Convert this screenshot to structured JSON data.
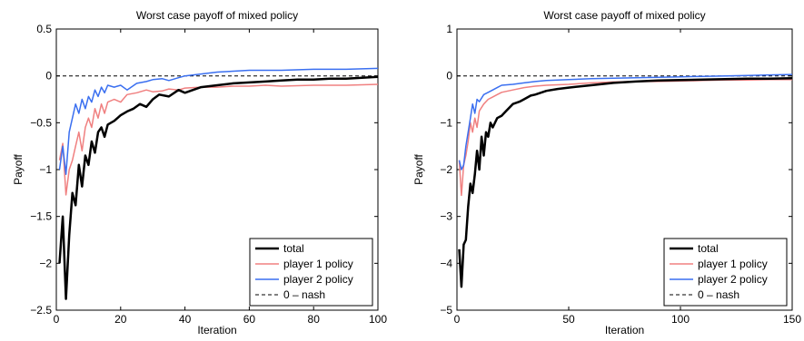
{
  "chart_data": [
    {
      "type": "line",
      "title": "Worst case payoff of mixed policy",
      "xlabel": "Iteration",
      "ylabel": "Payoff",
      "xlim": [
        0,
        100
      ],
      "ylim": [
        -2.5,
        0.5
      ],
      "xticks": [
        0,
        20,
        40,
        60,
        80,
        100
      ],
      "xtick_labels": [
        "0",
        "20",
        "40",
        "60",
        "80",
        "100"
      ],
      "yticks": [
        -2.5,
        -2,
        -1.5,
        -1,
        -0.5,
        0,
        0.5
      ],
      "ytick_labels": [
        "−2.5",
        "−2",
        "−1.5",
        "−1",
        "−0.5",
        "0",
        "0.5"
      ],
      "legend_position": "bottom-right",
      "series": [
        {
          "name": "total",
          "color": "#000000",
          "style": "solid-thick",
          "x": [
            1,
            2,
            3,
            4,
            5,
            6,
            7,
            8,
            9,
            10,
            11,
            12,
            13,
            14,
            15,
            16,
            17,
            18,
            19,
            20,
            22,
            24,
            26,
            28,
            30,
            32,
            35,
            38,
            40,
            45,
            50,
            55,
            60,
            65,
            70,
            75,
            80,
            85,
            90,
            95,
            100
          ],
          "y": [
            -2.0,
            -1.5,
            -2.38,
            -1.7,
            -1.25,
            -1.38,
            -0.95,
            -1.18,
            -0.85,
            -0.95,
            -0.7,
            -0.82,
            -0.6,
            -0.55,
            -0.65,
            -0.52,
            -0.5,
            -0.48,
            -0.45,
            -0.42,
            -0.38,
            -0.35,
            -0.3,
            -0.33,
            -0.25,
            -0.2,
            -0.22,
            -0.15,
            -0.18,
            -0.12,
            -0.1,
            -0.08,
            -0.07,
            -0.06,
            -0.05,
            -0.04,
            -0.04,
            -0.03,
            -0.03,
            -0.02,
            -0.01
          ]
        },
        {
          "name": "player 1 policy",
          "color": "#f08080",
          "style": "solid",
          "x": [
            1,
            2,
            3,
            4,
            5,
            6,
            7,
            8,
            9,
            10,
            11,
            12,
            13,
            14,
            15,
            16,
            18,
            20,
            22,
            25,
            28,
            30,
            33,
            35,
            38,
            40,
            45,
            50,
            55,
            60,
            65,
            70,
            80,
            90,
            100
          ],
          "y": [
            -0.9,
            -0.72,
            -1.27,
            -1.0,
            -0.9,
            -0.75,
            -0.6,
            -0.8,
            -0.55,
            -0.45,
            -0.55,
            -0.35,
            -0.45,
            -0.3,
            -0.4,
            -0.28,
            -0.25,
            -0.28,
            -0.2,
            -0.18,
            -0.15,
            -0.17,
            -0.16,
            -0.14,
            -0.15,
            -0.13,
            -0.12,
            -0.12,
            -0.11,
            -0.11,
            -0.1,
            -0.11,
            -0.1,
            -0.1,
            -0.09
          ]
        },
        {
          "name": "player 2 policy",
          "color": "#3a6ff0",
          "style": "solid",
          "x": [
            1,
            2,
            3,
            4,
            5,
            6,
            7,
            8,
            9,
            10,
            11,
            12,
            13,
            14,
            15,
            16,
            18,
            20,
            22,
            25,
            28,
            30,
            33,
            35,
            38,
            40,
            45,
            50,
            55,
            60,
            70,
            80,
            90,
            100
          ],
          "y": [
            -1.0,
            -0.75,
            -1.05,
            -0.6,
            -0.45,
            -0.3,
            -0.4,
            -0.25,
            -0.35,
            -0.22,
            -0.28,
            -0.15,
            -0.22,
            -0.12,
            -0.18,
            -0.1,
            -0.12,
            -0.1,
            -0.15,
            -0.08,
            -0.06,
            -0.04,
            -0.03,
            -0.05,
            -0.02,
            0.0,
            0.02,
            0.04,
            0.05,
            0.06,
            0.06,
            0.07,
            0.07,
            0.08
          ]
        },
        {
          "name": "0 – nash",
          "color": "#000000",
          "style": "dashed",
          "x": [
            0,
            100
          ],
          "y": [
            0,
            0
          ]
        }
      ]
    },
    {
      "type": "line",
      "title": "Worst case payoff of mixed policy",
      "xlabel": "Iteration",
      "ylabel": "Payoff",
      "xlim": [
        0,
        150
      ],
      "ylim": [
        -5,
        1
      ],
      "xticks": [
        0,
        50,
        100,
        150
      ],
      "xtick_labels": [
        "0",
        "50",
        "100",
        "150"
      ],
      "yticks": [
        -5,
        -4,
        -3,
        -2,
        -1,
        0,
        1
      ],
      "ytick_labels": [
        "−5",
        "−4",
        "−3",
        "−2",
        "−1",
        "0",
        "1"
      ],
      "legend_position": "bottom-right",
      "series": [
        {
          "name": "total",
          "color": "#000000",
          "style": "solid-thick",
          "x": [
            1,
            2,
            3,
            4,
            5,
            6,
            7,
            8,
            9,
            10,
            11,
            12,
            13,
            14,
            15,
            16,
            18,
            20,
            22,
            25,
            28,
            30,
            33,
            35,
            40,
            45,
            50,
            60,
            70,
            80,
            90,
            100,
            110,
            120,
            130,
            140,
            150
          ],
          "y": [
            -3.7,
            -4.5,
            -3.6,
            -3.5,
            -2.8,
            -2.3,
            -2.5,
            -2.1,
            -1.6,
            -2.0,
            -1.3,
            -1.7,
            -1.2,
            -1.3,
            -1.0,
            -1.1,
            -0.9,
            -0.85,
            -0.75,
            -0.6,
            -0.55,
            -0.5,
            -0.42,
            -0.4,
            -0.32,
            -0.28,
            -0.25,
            -0.2,
            -0.15,
            -0.12,
            -0.1,
            -0.09,
            -0.08,
            -0.07,
            -0.06,
            -0.06,
            -0.05
          ]
        },
        {
          "name": "player 1 policy",
          "color": "#f08080",
          "style": "solid",
          "x": [
            1,
            2,
            3,
            4,
            5,
            6,
            7,
            8,
            9,
            10,
            12,
            14,
            16,
            18,
            20,
            25,
            30,
            35,
            40,
            50,
            60,
            70,
            80,
            90,
            100,
            110,
            120,
            130,
            140,
            150
          ],
          "y": [
            -1.8,
            -2.55,
            -1.9,
            -1.7,
            -1.4,
            -1.0,
            -1.2,
            -0.9,
            -1.1,
            -0.75,
            -0.6,
            -0.5,
            -0.45,
            -0.4,
            -0.35,
            -0.3,
            -0.25,
            -0.22,
            -0.2,
            -0.18,
            -0.15,
            -0.13,
            -0.12,
            -0.12,
            -0.11,
            -0.1,
            -0.09,
            -0.09,
            -0.08,
            -0.08
          ]
        },
        {
          "name": "player 2 policy",
          "color": "#3a6ff0",
          "style": "solid",
          "x": [
            1,
            2,
            3,
            4,
            5,
            6,
            7,
            8,
            9,
            10,
            12,
            14,
            16,
            18,
            20,
            25,
            30,
            35,
            40,
            50,
            60,
            70,
            80,
            90,
            100,
            110,
            120,
            130,
            140,
            150
          ],
          "y": [
            -1.8,
            -2.0,
            -1.9,
            -1.5,
            -1.2,
            -0.9,
            -0.6,
            -0.8,
            -0.5,
            -0.55,
            -0.4,
            -0.35,
            -0.3,
            -0.25,
            -0.2,
            -0.18,
            -0.15,
            -0.12,
            -0.1,
            -0.08,
            -0.06,
            -0.05,
            -0.04,
            -0.03,
            -0.02,
            -0.01,
            0.0,
            0.01,
            0.02,
            0.03
          ]
        },
        {
          "name": "0 – nash",
          "color": "#000000",
          "style": "dashed",
          "x": [
            0,
            150
          ],
          "y": [
            0,
            0
          ]
        }
      ]
    }
  ]
}
